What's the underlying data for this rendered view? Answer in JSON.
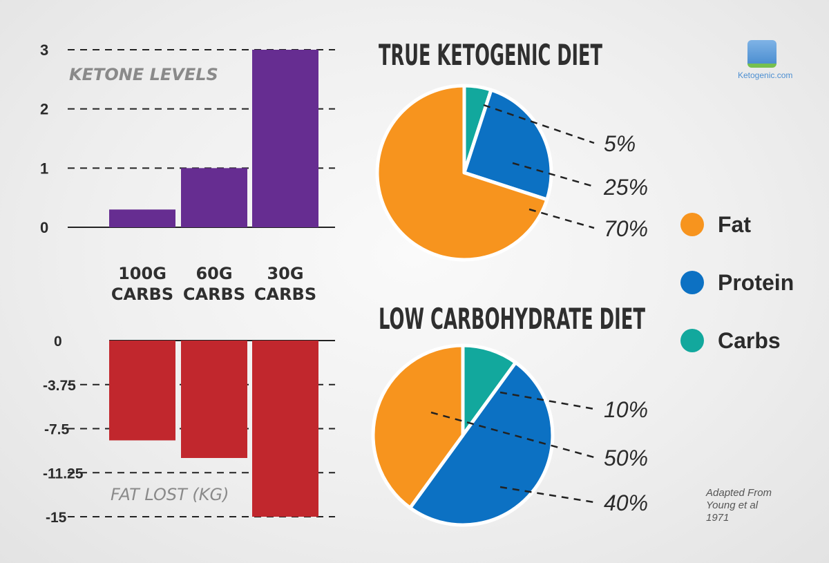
{
  "chart_data": [
    {
      "type": "bar",
      "title": "KETONE LEVELS",
      "categories": [
        "100G CARBS",
        "60G CARBS",
        "30G CARBS"
      ],
      "values": [
        0.3,
        1.0,
        3.0
      ],
      "yticks": [
        "3",
        "2",
        "1",
        "0"
      ],
      "ylim": [
        0,
        3
      ],
      "color": "#662d91",
      "grid": true
    },
    {
      "type": "bar",
      "title": "FAT LOST (KG)",
      "categories": [
        "100G CARBS",
        "60G CARBS",
        "30G CARBS"
      ],
      "values": [
        -8.5,
        -10.0,
        -15.0
      ],
      "yticks": [
        "0",
        "-3.75",
        "-7.5",
        "-11.25",
        "-15"
      ],
      "ylim": [
        -15,
        0
      ],
      "color": "#c1272d",
      "grid": true
    },
    {
      "type": "pie",
      "title": "TRUE KETOGENIC DIET",
      "slices": [
        {
          "name": "Carbs",
          "value": 5,
          "label": "5%",
          "color": "#12a89d"
        },
        {
          "name": "Protein",
          "value": 25,
          "label": "25%",
          "color": "#0c71c3"
        },
        {
          "name": "Fat",
          "value": 70,
          "label": "70%",
          "color": "#f7941e"
        }
      ]
    },
    {
      "type": "pie",
      "title": "LOW CARBOHYDRATE DIET",
      "slices": [
        {
          "name": "Carbs",
          "value": 10,
          "label": "10%",
          "color": "#12a89d"
        },
        {
          "name": "Protein",
          "value": 50,
          "label": "50%",
          "color": "#0c71c3"
        },
        {
          "name": "Fat",
          "value": 40,
          "label": "40%",
          "color": "#f7941e"
        }
      ]
    }
  ],
  "legend": [
    {
      "label": "Fat",
      "color": "#f7941e"
    },
    {
      "label": "Protein",
      "color": "#0c71c3"
    },
    {
      "label": "Carbs",
      "color": "#12a89d"
    }
  ],
  "logo": {
    "text": "Ketogenic.com"
  },
  "source": {
    "line1": "Adapted From",
    "line2": "Young et al",
    "line3": "1971"
  }
}
